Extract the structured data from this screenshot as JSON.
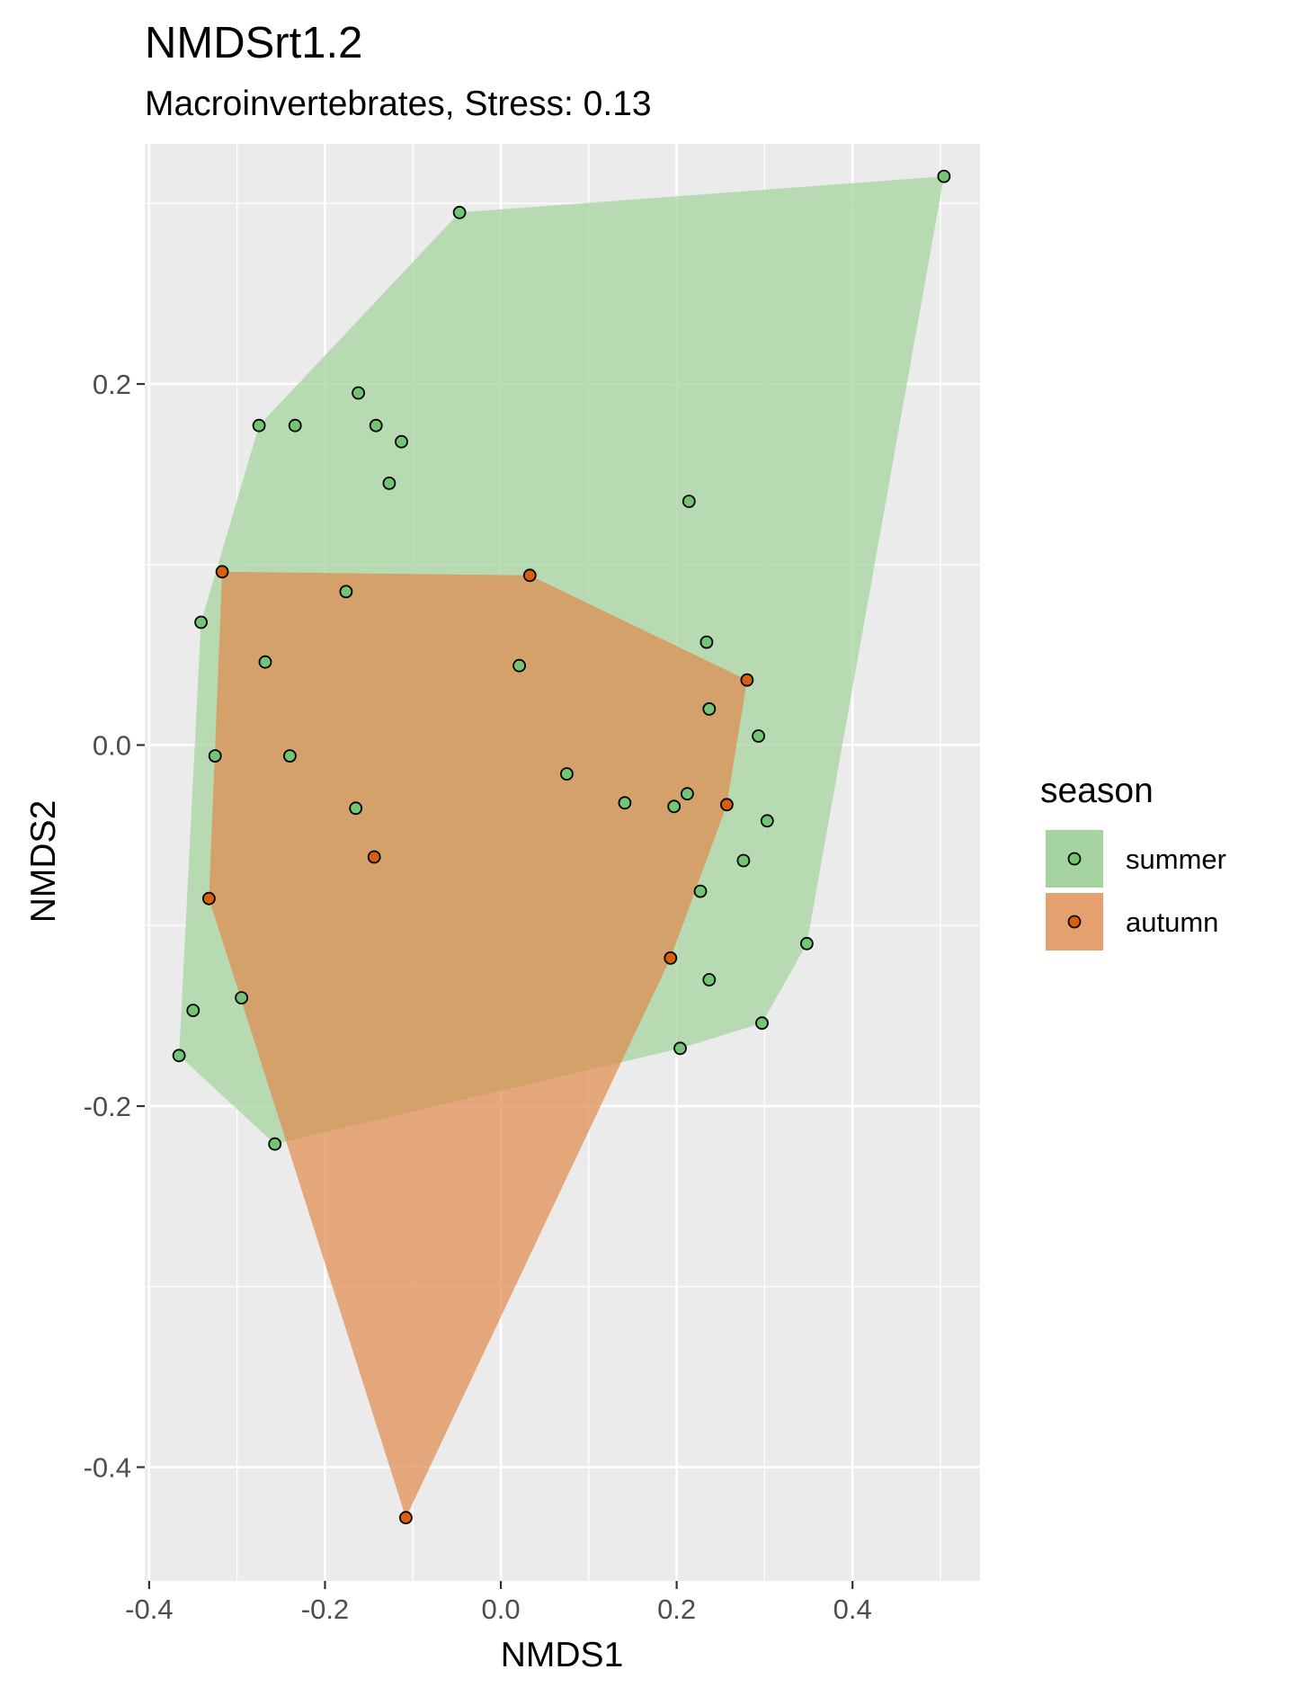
{
  "chart_data": {
    "type": "scatter",
    "title": "NMDSrt1.2",
    "subtitle": "Macroinvertebrates, Stress: 0.13",
    "xlabel": "NMDS1",
    "ylabel": "NMDS2",
    "xlim": [
      -0.405,
      0.545
    ],
    "ylim": [
      -0.463,
      0.333
    ],
    "xticks": [
      -0.4,
      -0.2,
      0.0,
      0.2,
      0.4
    ],
    "xtick_labels": [
      "-0.4",
      "-0.2",
      "0.0",
      "0.2",
      "0.4"
    ],
    "yticks": [
      -0.4,
      -0.2,
      0.0,
      0.2
    ],
    "ytick_labels": [
      "-0.4",
      "-0.2",
      "0.0",
      "0.2"
    ],
    "grid": true,
    "legend": {
      "title": "season",
      "position": "right"
    },
    "colors": {
      "panel": "#ebebeb",
      "grid": "#ffffff",
      "summer_fill": "#a6d4a0",
      "summer_point": "#74c476",
      "autumn_fill": "#e08a4f",
      "autumn_point": "#d95f0e"
    },
    "series": [
      {
        "name": "summer",
        "hull": true,
        "points": [
          [
            0.504,
            0.315
          ],
          [
            -0.047,
            0.295
          ],
          [
            -0.162,
            0.195
          ],
          [
            -0.275,
            0.177
          ],
          [
            -0.234,
            0.177
          ],
          [
            -0.142,
            0.177
          ],
          [
            -0.113,
            0.168
          ],
          [
            -0.127,
            0.145
          ],
          [
            0.214,
            0.135
          ],
          [
            -0.176,
            0.085
          ],
          [
            -0.341,
            0.068
          ],
          [
            0.234,
            0.057
          ],
          [
            -0.268,
            0.046
          ],
          [
            0.021,
            0.044
          ],
          [
            0.237,
            0.02
          ],
          [
            0.293,
            0.005
          ],
          [
            -0.325,
            -0.006
          ],
          [
            -0.24,
            -0.006
          ],
          [
            0.075,
            -0.016
          ],
          [
            0.141,
            -0.032
          ],
          [
            0.212,
            -0.027
          ],
          [
            0.197,
            -0.034
          ],
          [
            -0.165,
            -0.035
          ],
          [
            0.303,
            -0.042
          ],
          [
            0.276,
            -0.064
          ],
          [
            0.227,
            -0.081
          ],
          [
            0.348,
            -0.11
          ],
          [
            0.237,
            -0.13
          ],
          [
            -0.295,
            -0.14
          ],
          [
            -0.35,
            -0.147
          ],
          [
            0.297,
            -0.154
          ],
          [
            0.204,
            -0.168
          ],
          [
            -0.366,
            -0.172
          ],
          [
            -0.257,
            -0.221
          ]
        ]
      },
      {
        "name": "autumn",
        "hull": true,
        "points": [
          [
            -0.317,
            0.096
          ],
          [
            0.033,
            0.094
          ],
          [
            0.28,
            0.036
          ],
          [
            0.257,
            -0.033
          ],
          [
            -0.144,
            -0.062
          ],
          [
            -0.332,
            -0.085
          ],
          [
            0.193,
            -0.118
          ],
          [
            -0.108,
            -0.428
          ]
        ]
      }
    ]
  }
}
